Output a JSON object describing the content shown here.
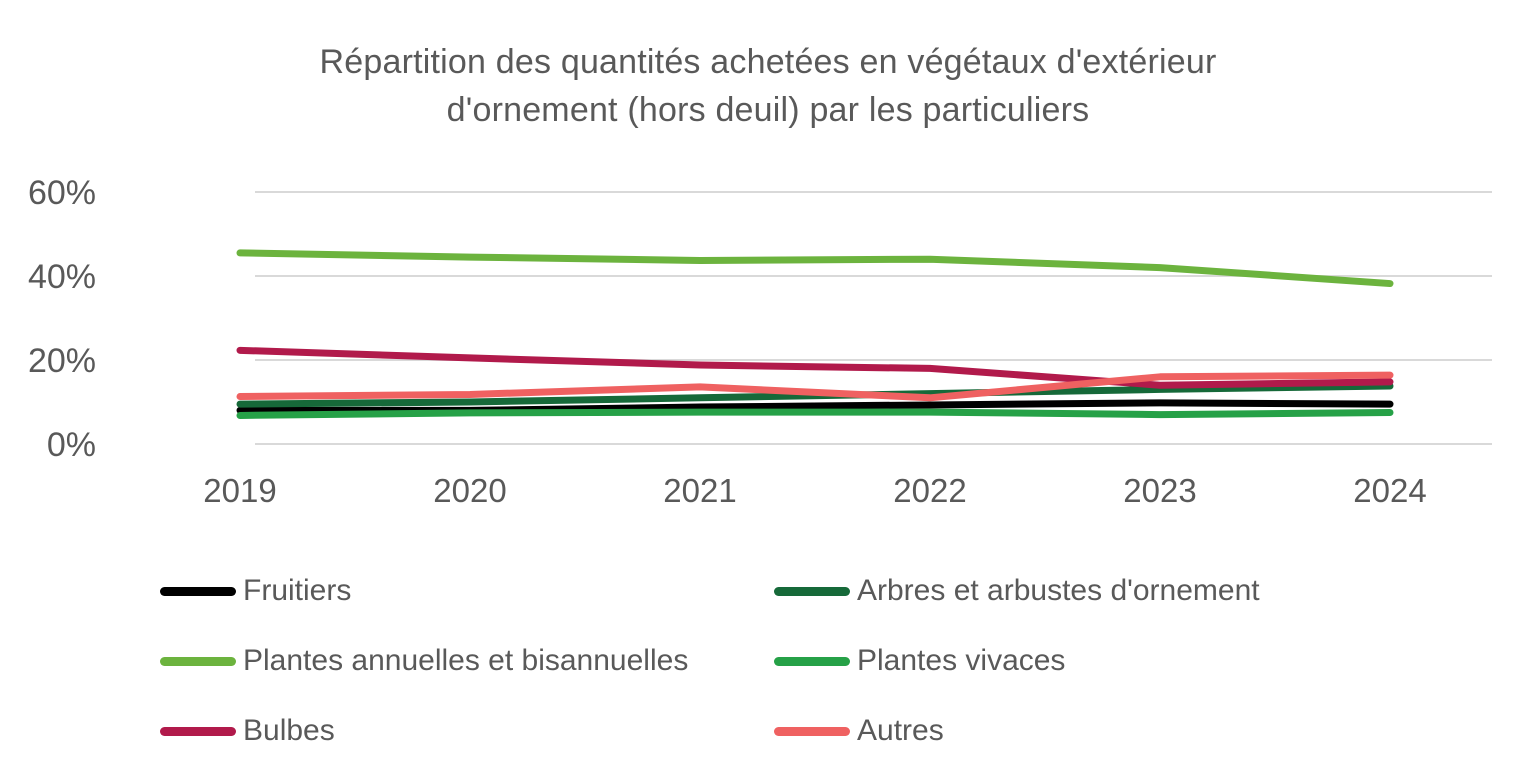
{
  "chart": {
    "title_line1": "Répartition des quantités achetées en végétaux d'extérieur",
    "title_line2": "d'ornement (hors deuil) par les particuliers"
  },
  "colors": {
    "text_gray": "#595959",
    "gridline": "#d9d9d9",
    "background": "#ffffff"
  },
  "chart_data": {
    "type": "line",
    "title": "Répartition des quantités achetées en végétaux d'extérieur d'ornement (hors deuil) par les particuliers",
    "x": [
      "2019",
      "2020",
      "2021",
      "2022",
      "2023",
      "2024"
    ],
    "xlabel": "",
    "ylabel": "",
    "unit": "%",
    "ylim": [
      0,
      60
    ],
    "y_ticks": [
      {
        "value": 0,
        "label": "0%"
      },
      {
        "value": 20,
        "label": "20%"
      },
      {
        "value": 40,
        "label": "40%"
      },
      {
        "value": 60,
        "label": "60%"
      }
    ],
    "grid": true,
    "legend_position": "bottom",
    "series": [
      {
        "name": "Fruitiers",
        "color": "#000000",
        "values": [
          8.0,
          8.0,
          8.8,
          9.3,
          9.8,
          9.5
        ]
      },
      {
        "name": "Arbres et arbustes d'ornement",
        "color": "#166939",
        "values": [
          9.5,
          10.0,
          11.0,
          12.0,
          13.0,
          13.8
        ]
      },
      {
        "name": "Plantes annuelles et bisannuelles",
        "color": "#6cb33e",
        "values": [
          45.5,
          44.5,
          43.7,
          44.0,
          42.0,
          38.2
        ]
      },
      {
        "name": "Plantes vivaces",
        "color": "#26a147",
        "values": [
          6.8,
          7.4,
          7.6,
          7.6,
          7.0,
          7.5
        ]
      },
      {
        "name": "Bulbes",
        "color": "#b11a4b",
        "values": [
          22.3,
          20.5,
          18.8,
          18.0,
          14.0,
          14.8
        ]
      },
      {
        "name": "Autres",
        "color": "#ef6161",
        "values": [
          11.3,
          11.8,
          13.6,
          11.0,
          16.0,
          16.4
        ]
      }
    ]
  }
}
